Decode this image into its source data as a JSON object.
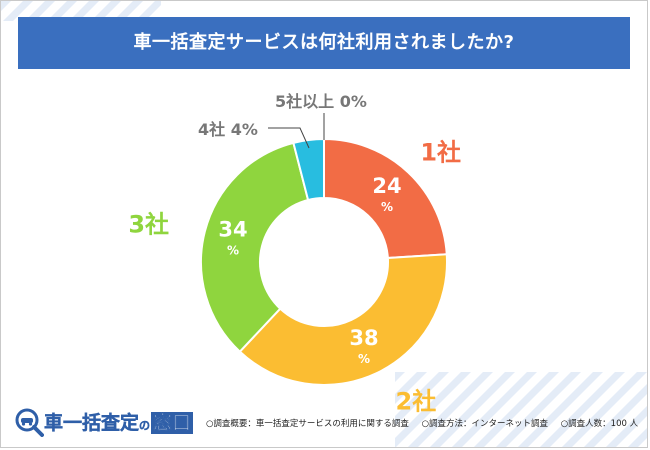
{
  "title": "車一括査定サービスは何社利用されましたか?",
  "chart_data": {
    "type": "pie",
    "donut": true,
    "title": "車一括査定サービスは何社利用されましたか?",
    "slices": [
      {
        "label": "1社",
        "value": 24,
        "value_text": "24",
        "unit": "%",
        "color": "#f26c45"
      },
      {
        "label": "2社",
        "value": 38,
        "value_text": "38",
        "unit": "%",
        "color": "#fbbd32"
      },
      {
        "label": "3社",
        "value": 34,
        "value_text": "34",
        "unit": "%",
        "color": "#8fd53e"
      },
      {
        "label": "4社",
        "value": 4,
        "value_text": "4",
        "unit": "%",
        "color": "#28bde0"
      },
      {
        "label": "5社以上",
        "value": 0,
        "value_text": "0",
        "unit": "%",
        "color": "#888888"
      }
    ],
    "outside_labels": {
      "s4": "4社 4%",
      "s5": "5社以上 0%"
    }
  },
  "footer": {
    "logo_text_main": "車一括査定",
    "logo_text_small": "の",
    "logo_text_boxed": "窓口",
    "notes": [
      "○調査概要：車一括査定サービスの利用に関する調査",
      "○調査方法：インターネット調査",
      "○調査人数：100 人"
    ]
  },
  "colors": {
    "title_bg": "#3a6fbf",
    "stripe": "#e4ecf7",
    "slice_label_grey": "#777777"
  }
}
